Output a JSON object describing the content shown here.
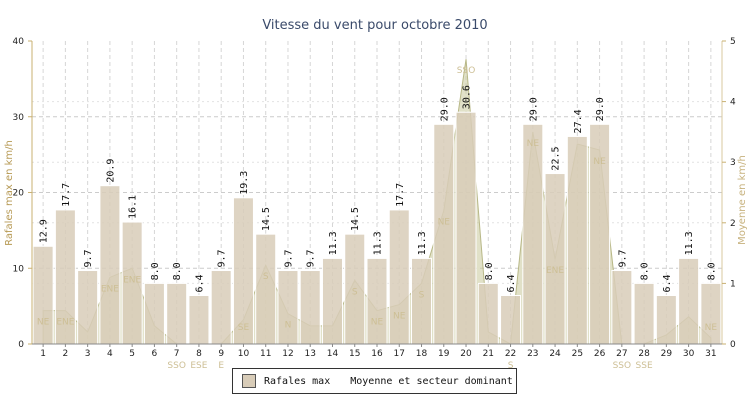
{
  "chart_data": {
    "type": "bar",
    "title": "Vitesse du vent pour octobre 2010",
    "ylabel_left": "Rafales max en km/h",
    "ylabel_right": "Moyenne en km/h",
    "ylim_left": [
      0,
      40
    ],
    "ylim_right": [
      0,
      5
    ],
    "yticks_left": [
      "0",
      "10",
      "20",
      "30",
      "40"
    ],
    "yticks_right": [
      "0",
      "1",
      "2",
      "3",
      "4",
      "5"
    ],
    "categories": [
      "1",
      "2",
      "3",
      "4",
      "5",
      "6",
      "7",
      "8",
      "9",
      "10",
      "11",
      "12",
      "13",
      "14",
      "15",
      "16",
      "17",
      "18",
      "19",
      "20",
      "21",
      "22",
      "23",
      "24",
      "25",
      "26",
      "27",
      "28",
      "29",
      "30",
      "31"
    ],
    "grid": true,
    "legend_position": "bottom",
    "series": [
      {
        "name": "Rafales max",
        "type": "bar",
        "axis": "left",
        "color": "#d8ccb8",
        "values": [
          12.9,
          17.7,
          9.7,
          20.9,
          16.1,
          8.0,
          8.0,
          6.4,
          9.7,
          19.3,
          14.5,
          9.7,
          9.7,
          11.3,
          14.5,
          11.3,
          17.7,
          11.3,
          29.0,
          30.6,
          8.0,
          6.4,
          29.0,
          22.5,
          27.4,
          29.0,
          9.7,
          8.0,
          6.4,
          11.3,
          8.0
        ],
        "labels": [
          "12.9",
          "17.7",
          "9.7",
          "20.9",
          "16.1",
          "8.0",
          "8.0",
          "6.4",
          "9.7",
          "19.3",
          "14.5",
          "9.7",
          "9.7",
          "11.3",
          "14.5",
          "11.3",
          "17.7",
          "11.3",
          "29.0",
          "30.6",
          "8.0",
          "6.4",
          "29.0",
          "22.5",
          "27.4",
          "29.0",
          "9.7",
          "8.0",
          "6.4",
          "11.3",
          "8.0"
        ]
      },
      {
        "name": "Moyenne et secteur dominant",
        "type": "area",
        "axis": "right",
        "color": "#c8c89a",
        "values": [
          0.55,
          0.55,
          0.2,
          1.1,
          1.25,
          0.3,
          0.0,
          0.0,
          0.0,
          0.4,
          1.3,
          0.5,
          0.3,
          0.3,
          1.05,
          0.55,
          0.65,
          1.0,
          2.2,
          4.7,
          0.2,
          0.0,
          3.5,
          1.4,
          3.3,
          3.2,
          0.0,
          0.0,
          0.15,
          0.45,
          0.1
        ],
        "sectors": [
          "NE",
          "ENE",
          "",
          "ENE",
          "ENE",
          "",
          "SSO",
          "ESE",
          "E",
          "SE",
          "S",
          "N",
          "",
          "",
          "S",
          "NE",
          "NE",
          "S",
          "NE",
          "SSO",
          "",
          "S",
          "NE",
          "ENE",
          "",
          "NE",
          "SSO",
          "SSE",
          "",
          "",
          "NE"
        ]
      }
    ]
  }
}
